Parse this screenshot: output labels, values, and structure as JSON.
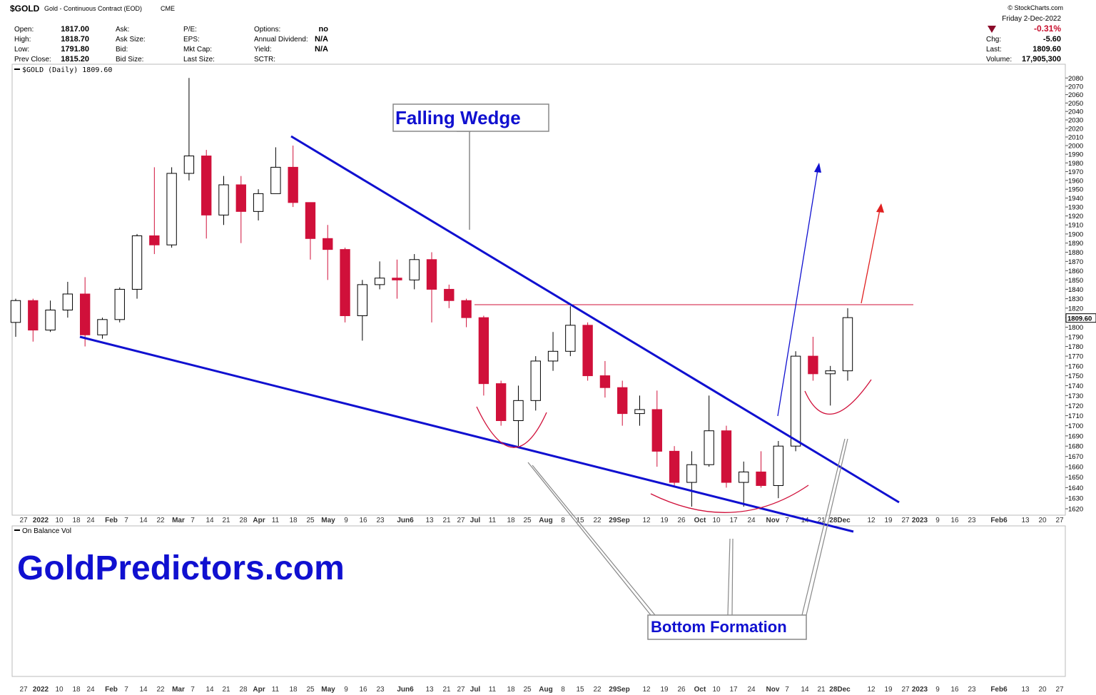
{
  "header": {
    "symbol": "$GOLD",
    "name": "Gold - Continuous Contract (EOD)",
    "exchange": "CME",
    "credit": "© StockCharts.com",
    "date": "Friday  2-Dec-2022",
    "stats": [
      [
        [
          "Open:",
          "1817.00"
        ],
        [
          "High:",
          "1818.70"
        ],
        [
          "Low:",
          "1791.80"
        ],
        [
          "Prev Close:",
          "1815.20"
        ]
      ],
      [
        [
          "Ask:",
          ""
        ],
        [
          "Ask Size:",
          ""
        ],
        [
          "Bid:",
          ""
        ],
        [
          "Bid Size:",
          ""
        ]
      ],
      [
        [
          "P/E:",
          ""
        ],
        [
          "EPS:",
          ""
        ],
        [
          "Mkt Cap:",
          ""
        ],
        [
          "Last Size:",
          ""
        ]
      ],
      [
        [
          "Options:",
          "no"
        ],
        [
          "Annual Dividend:",
          "N/A"
        ],
        [
          "Yield:",
          "N/A"
        ],
        [
          "SCTR:",
          ""
        ]
      ]
    ],
    "change_pct": "-0.31%",
    "right_stats": [
      [
        "Chg:",
        "-5.60"
      ],
      [
        "Last:",
        "1809.60"
      ],
      [
        "Volume:",
        "17,905,300"
      ]
    ]
  },
  "chart_data": {
    "type": "candlestick",
    "legend": "$GOLD (Daily) 1809.60",
    "last_price": "1809.60",
    "lower_panel_label": "On Balance Vol",
    "log_scale": true,
    "up_color": "#000000",
    "down_color": "#d0103a",
    "open": [
      1805,
      1828,
      1797,
      1818,
      1835,
      1792,
      1808,
      1840,
      1898,
      1888,
      1968,
      1988,
      1921,
      1955,
      1925,
      1945,
      1975,
      1935,
      1895,
      1883,
      1812,
      1845,
      1852,
      1850,
      1872,
      1840,
      1828,
      1810,
      1742,
      1705,
      1725,
      1765,
      1775,
      1802,
      1750,
      1738,
      1712,
      1716,
      1675,
      1645,
      1662,
      1695,
      1645,
      1655,
      1642,
      1680,
      1770,
      1752,
      1755
    ],
    "high": [
      1830,
      1830,
      1828,
      1848,
      1853,
      1810,
      1842,
      1900,
      1975,
      1975,
      2080,
      1995,
      1965,
      1965,
      1950,
      1998,
      2000,
      1935,
      1910,
      1885,
      1850,
      1870,
      1872,
      1878,
      1880,
      1845,
      1830,
      1812,
      1745,
      1740,
      1770,
      1795,
      1822,
      1805,
      1765,
      1745,
      1730,
      1735,
      1680,
      1675,
      1730,
      1700,
      1665,
      1675,
      1685,
      1775,
      1790,
      1760,
      1820
    ],
    "low": [
      1790,
      1785,
      1795,
      1810,
      1780,
      1788,
      1805,
      1830,
      1878,
      1885,
      1960,
      1895,
      1910,
      1890,
      1915,
      1945,
      1930,
      1872,
      1850,
      1805,
      1786,
      1840,
      1830,
      1840,
      1805,
      1820,
      1800,
      1730,
      1700,
      1680,
      1715,
      1755,
      1770,
      1745,
      1728,
      1700,
      1700,
      1660,
      1640,
      1622,
      1660,
      1640,
      1622,
      1640,
      1630,
      1675,
      1745,
      1720,
      1745
    ],
    "close": [
      1828,
      1797,
      1818,
      1835,
      1792,
      1808,
      1840,
      1898,
      1888,
      1968,
      1988,
      1921,
      1955,
      1925,
      1945,
      1975,
      1935,
      1895,
      1883,
      1812,
      1845,
      1852,
      1850,
      1872,
      1840,
      1828,
      1810,
      1742,
      1705,
      1725,
      1765,
      1775,
      1802,
      1750,
      1738,
      1712,
      1716,
      1675,
      1645,
      1662,
      1695,
      1645,
      1655,
      1642,
      1680,
      1770,
      1752,
      1755,
      1810
    ],
    "ylim": [
      1614,
      2088
    ],
    "yticks": [
      1620,
      1630,
      1640,
      1650,
      1660,
      1670,
      1680,
      1690,
      1700,
      1710,
      1720,
      1730,
      1740,
      1750,
      1760,
      1770,
      1780,
      1790,
      1800,
      1810,
      1820,
      1830,
      1840,
      1850,
      1860,
      1870,
      1880,
      1890,
      1900,
      1910,
      1920,
      1930,
      1940,
      1950,
      1960,
      1970,
      1980,
      1990,
      2000,
      2010,
      2020,
      2030,
      2040,
      2050,
      2060,
      2070,
      2080
    ],
    "x_axis_labels": [
      "27",
      "2022",
      "10",
      "18",
      "24",
      "Feb",
      "7",
      "14",
      "22",
      "Mar",
      "7",
      "14",
      "21",
      "28",
      "Apr",
      "11",
      "18",
      "25",
      "May",
      "9",
      "16",
      "23",
      "Jun6",
      "13",
      "21",
      "27",
      "Jul",
      "11",
      "18",
      "25",
      "Aug",
      "8",
      "15",
      "22",
      "29Sep",
      "12",
      "19",
      "26",
      "Oct",
      "10",
      "17",
      "24",
      "Nov",
      "7",
      "14",
      "21",
      "28Dec",
      "12",
      "19",
      "27",
      "2023",
      "9",
      "16",
      "23",
      "Feb6",
      "13",
      "20",
      "27"
    ],
    "annotations": [
      "Falling Wedge",
      "Bottom Formation",
      "GoldPredictors.com"
    ]
  }
}
